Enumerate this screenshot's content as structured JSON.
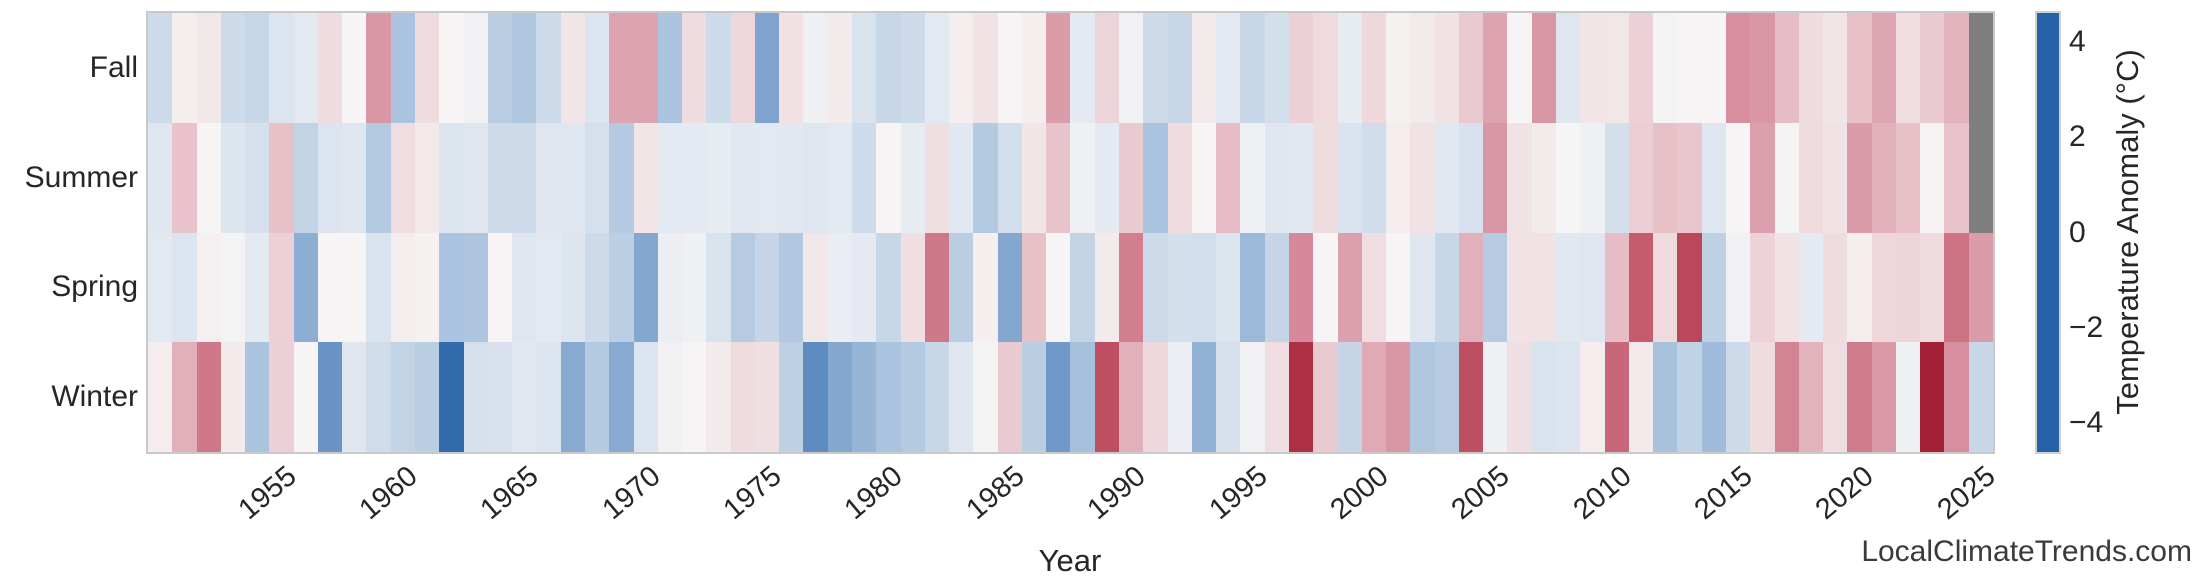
{
  "watermark": "LocalClimateTrends.com",
  "chart_data": {
    "type": "heatmap",
    "title": "",
    "xlabel": "Year",
    "ylabel": "",
    "x_start_year": 1950,
    "x_end_year": 2025,
    "x_tick_years": [
      1955,
      1960,
      1965,
      1970,
      1975,
      1980,
      1985,
      1990,
      1995,
      2000,
      2005,
      2010,
      2015,
      2020,
      2025
    ],
    "rows": [
      "Fall",
      "Summer",
      "Spring",
      "Winter"
    ],
    "legend_position": "right",
    "grid": false,
    "missing_value_color": "#7f7f7f",
    "axis_text_color": "#262626",
    "plot_border_color": "#c9c9c9",
    "colorbar": {
      "label": "Temperature Anomaly (°C)",
      "ticks": [
        4,
        2,
        0,
        -2,
        -4
      ],
      "vmin": -4.6,
      "vmax": 4.6
    },
    "colormap_anchors": [
      [
        -4.6,
        "#2562a6"
      ],
      [
        -3.0,
        "#6b94c6"
      ],
      [
        -2.0,
        "#9cb9d9"
      ],
      [
        -1.0,
        "#ccdae9"
      ],
      [
        -0.35,
        "#e5eaf2"
      ],
      [
        0.0,
        "#f6f4f4"
      ],
      [
        0.35,
        "#f3e9ea"
      ],
      [
        1.0,
        "#ecd0d6"
      ],
      [
        2.0,
        "#d78f9f"
      ],
      [
        3.0,
        "#c25668"
      ],
      [
        4.6,
        "#a01a2e"
      ]
    ],
    "series": [
      {
        "name": "Fall",
        "values": [
          -1.0,
          0.2,
          0.4,
          -1.0,
          -1.1,
          -0.6,
          -0.4,
          0.7,
          0.0,
          1.9,
          -1.7,
          0.7,
          0.0,
          -0.1,
          -1.4,
          -1.6,
          -1.0,
          0.45,
          -0.6,
          1.7,
          1.7,
          -1.7,
          0.7,
          -1.0,
          0.85,
          -2.6,
          0.55,
          -0.15,
          0.3,
          -0.65,
          -1.1,
          -1.0,
          -0.4,
          0.2,
          0.5,
          0.0,
          0.2,
          1.8,
          -0.35,
          0.9,
          -0.1,
          -1.0,
          -1.1,
          0.3,
          -0.4,
          -1.1,
          -0.8,
          1.0,
          0.75,
          -0.3,
          0.8,
          0.1,
          0.3,
          0.5,
          1.1,
          1.7,
          0.0,
          1.9,
          -0.5,
          0.45,
          0.4,
          1.0,
          -0.05,
          0.0,
          0.0,
          2.0,
          1.9,
          1.3,
          0.7,
          0.45,
          1.25,
          1.65,
          0.65,
          1.1,
          1.45,
          null
        ]
      },
      {
        "name": "Summer",
        "values": [
          -0.5,
          1.2,
          0.0,
          -0.55,
          -0.75,
          1.25,
          -1.2,
          -0.6,
          -0.5,
          -1.5,
          0.65,
          0.35,
          -0.55,
          -0.5,
          -1.0,
          -1.0,
          -0.5,
          -0.5,
          -0.75,
          -1.5,
          0.45,
          -0.4,
          -0.35,
          -0.3,
          -0.45,
          -0.4,
          -0.45,
          -0.5,
          -0.4,
          -0.95,
          0.0,
          -0.3,
          0.6,
          -0.45,
          -1.5,
          -0.85,
          0.45,
          1.2,
          -0.15,
          -0.35,
          1.1,
          -1.7,
          0.7,
          0.0,
          1.3,
          -0.15,
          -0.5,
          -0.45,
          0.7,
          -0.65,
          -0.9,
          0.25,
          0.5,
          -0.45,
          -0.7,
          1.9,
          0.5,
          0.3,
          0.0,
          -0.15,
          -0.8,
          1.05,
          1.25,
          1.15,
          -0.5,
          0.0,
          1.75,
          -0.05,
          0.75,
          0.5,
          1.8,
          1.5,
          1.25,
          0.05,
          1.2,
          null
        ]
      },
      {
        "name": "Spring",
        "values": [
          -0.4,
          -0.6,
          0.15,
          -0.05,
          -0.4,
          1.0,
          -2.3,
          0.0,
          0.0,
          -0.65,
          0.25,
          0.1,
          -1.7,
          -1.65,
          0.0,
          -0.5,
          -0.4,
          -0.55,
          -1.0,
          -1.35,
          -2.5,
          -0.2,
          -0.15,
          -0.65,
          -1.45,
          -1.15,
          -1.55,
          0.4,
          -0.25,
          -0.35,
          -1.1,
          0.6,
          2.4,
          -1.4,
          0.2,
          -2.5,
          1.25,
          0.0,
          -1.2,
          0.3,
          2.3,
          -1.0,
          -0.8,
          -0.85,
          -0.55,
          -2.0,
          -1.15,
          2.1,
          0.0,
          1.75,
          0.65,
          0.0,
          -0.5,
          -1.1,
          1.5,
          -1.45,
          0.5,
          0.5,
          -0.45,
          -0.5,
          1.3,
          2.9,
          0.75,
          3.4,
          -1.3,
          -0.1,
          0.95,
          0.5,
          -0.35,
          0.7,
          0.2,
          0.85,
          0.9,
          0.75,
          2.5,
          1.8
        ]
      },
      {
        "name": "Winter",
        "values": [
          0.25,
          1.5,
          2.4,
          0.3,
          -1.7,
          1.0,
          0.0,
          -3.0,
          -0.5,
          -0.9,
          -1.2,
          -1.4,
          -4.3,
          -0.75,
          -0.7,
          -0.45,
          -0.6,
          -2.4,
          -1.5,
          -2.4,
          -0.6,
          -0.1,
          0.0,
          0.3,
          0.7,
          0.6,
          -1.3,
          -3.3,
          -2.5,
          -2.1,
          -1.7,
          -1.5,
          -1.1,
          -0.5,
          -0.05,
          1.1,
          -1.4,
          -2.9,
          -1.8,
          3.2,
          1.5,
          0.8,
          -0.2,
          -2.2,
          -0.75,
          -0.1,
          0.65,
          4.0,
          1.1,
          -1.15,
          1.6,
          1.9,
          -1.6,
          -1.45,
          3.2,
          -0.15,
          0.6,
          -0.65,
          -0.6,
          0.25,
          2.7,
          0.3,
          -1.75,
          -1.25,
          -1.9,
          -1.0,
          0.7,
          2.2,
          1.45,
          0.65,
          2.35,
          1.85,
          -0.15,
          4.4,
          2.0,
          -1.1
        ]
      }
    ]
  }
}
